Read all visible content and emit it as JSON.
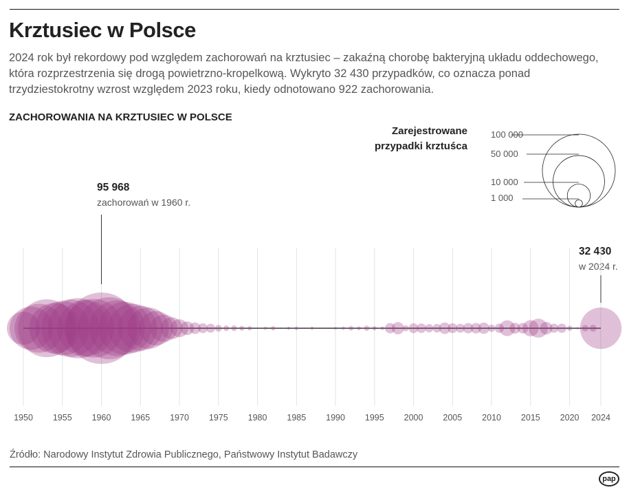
{
  "title": "Krztusiec w Polsce",
  "lead": "2024 rok był rekordowy pod względem zachorowań na krztusiec – zakaźną chorobę bakteryjną układu oddechowego, która rozprzestrzenia się drogą powietrzno-kropelkową. Wykryto 32 430 przypadków, co oznacza ponad trzydziestokrotny wzrost względem 2023 roku, kiedy odnotowano 922 zachorowania.",
  "source": "Źródło: Narodowy Instytut Zdrowia Publicznego, Państwowy Instytut Badawczy",
  "logo": "pap",
  "colors": {
    "bubble": "#a03a85",
    "axis": "#111111",
    "grid": "#e3e3e3"
  },
  "chart_data": {
    "type": "bubble",
    "title": "ZACHOROWANIA NA KRZTUSIEC W POLSCE",
    "legend": {
      "title": "Zarejestrowane przypadki krztuśca",
      "placement": "top-right",
      "sizes": [
        {
          "value": 100000,
          "label": "100 000"
        },
        {
          "value": 50000,
          "label": "50 000"
        },
        {
          "value": 10000,
          "label": "10 000"
        },
        {
          "value": 1000,
          "label": "1 000"
        }
      ]
    },
    "xlim": [
      1950,
      2024
    ],
    "ticks": [
      1950,
      1955,
      1960,
      1965,
      1970,
      1975,
      1980,
      1985,
      1990,
      1995,
      2000,
      2005,
      2010,
      2015,
      2020,
      2024
    ],
    "annotations": [
      {
        "year": 1960,
        "value": "95 968",
        "text": "zachorowań w 1960 r."
      },
      {
        "year": 2024,
        "value": "32 430",
        "text": "w 2024 r."
      }
    ],
    "years": [
      1950,
      1951,
      1952,
      1953,
      1954,
      1955,
      1956,
      1957,
      1958,
      1959,
      1960,
      1961,
      1962,
      1963,
      1964,
      1965,
      1966,
      1967,
      1968,
      1969,
      1970,
      1971,
      1972,
      1973,
      1974,
      1975,
      1976,
      1977,
      1978,
      1979,
      1980,
      1981,
      1982,
      1983,
      1984,
      1985,
      1986,
      1987,
      1988,
      1989,
      1990,
      1991,
      1992,
      1993,
      1994,
      1995,
      1996,
      1997,
      1998,
      1999,
      2000,
      2001,
      2002,
      2003,
      2004,
      2005,
      2006,
      2007,
      2008,
      2009,
      2010,
      2011,
      2012,
      2013,
      2014,
      2015,
      2016,
      2017,
      2018,
      2019,
      2020,
      2021,
      2022,
      2023,
      2024
    ],
    "values": [
      20500,
      35000,
      45000,
      63000,
      48000,
      55000,
      62000,
      68000,
      60000,
      65000,
      95968,
      72000,
      58000,
      52000,
      45000,
      38000,
      32000,
      22000,
      14000,
      9000,
      6000,
      3500,
      2500,
      1800,
      1500,
      900,
      600,
      600,
      450,
      350,
      40,
      200,
      350,
      30,
      200,
      250,
      30,
      200,
      20,
      30,
      150,
      220,
      420,
      300,
      520,
      350,
      250,
      2000,
      2800,
      700,
      1800,
      1700,
      1300,
      1400,
      2500,
      1800,
      1500,
      2000,
      2100,
      2400,
      1000,
      1600,
      4684,
      2182,
      2100,
      4959,
      6828,
      3000,
      1548,
      1629,
      500,
      100,
      800,
      922,
      32430
    ]
  }
}
